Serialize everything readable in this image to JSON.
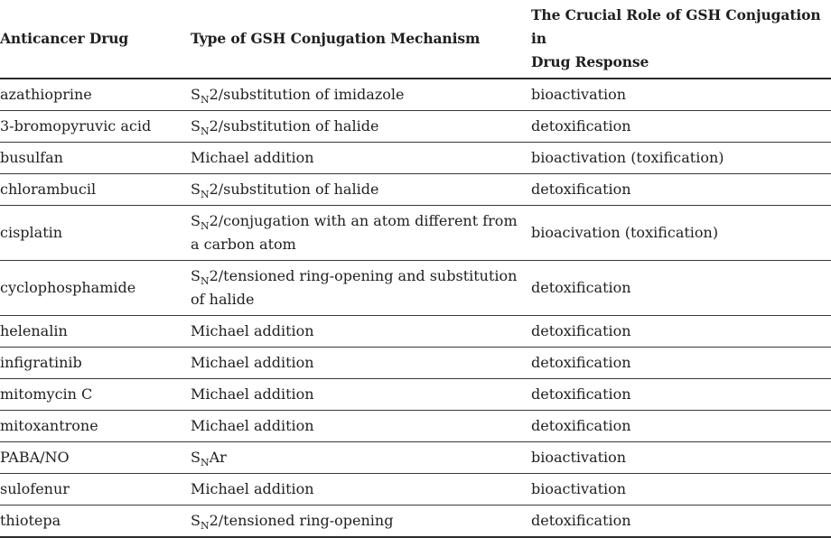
{
  "table": {
    "columns": [
      {
        "label": "Anticancer Drug"
      },
      {
        "label": "Type of GSH Conjugation Mechanism"
      },
      {
        "label": "The Crucial Role of GSH Conjugation in\nDrug Response"
      }
    ],
    "rows": [
      {
        "drug": "azathioprine",
        "mech_pre": "S",
        "mech_sub": "N",
        "mech_rest": "2/substitution of imidazole",
        "role": "bioactivation"
      },
      {
        "drug": "3-bromopyruvic acid",
        "mech_pre": "S",
        "mech_sub": "N",
        "mech_rest": "2/substitution of halide",
        "role": "detoxification"
      },
      {
        "drug": "busulfan",
        "mech_pre": "",
        "mech_sub": "",
        "mech_rest": "Michael addition",
        "role": "bioactivation (toxification)"
      },
      {
        "drug": "chlorambucil",
        "mech_pre": "S",
        "mech_sub": "N",
        "mech_rest": "2/substitution of halide",
        "role": "detoxification"
      },
      {
        "drug": "cisplatin",
        "mech_pre": "S",
        "mech_sub": "N",
        "mech_rest": "2/conjugation with an atom different from\na carbon atom",
        "role": "bioacivation (toxification)"
      },
      {
        "drug": "cyclophosphamide",
        "mech_pre": "S",
        "mech_sub": "N",
        "mech_rest": "2/tensioned ring-opening and substitution\nof halide",
        "role": "detoxification"
      },
      {
        "drug": "helenalin",
        "mech_pre": "",
        "mech_sub": "",
        "mech_rest": "Michael addition",
        "role": "detoxification"
      },
      {
        "drug": "infigratinib",
        "mech_pre": "",
        "mech_sub": "",
        "mech_rest": "Michael addition",
        "role": "detoxification"
      },
      {
        "drug": "mitomycin C",
        "mech_pre": "",
        "mech_sub": "",
        "mech_rest": "Michael addition",
        "role": "detoxification"
      },
      {
        "drug": "mitoxantrone",
        "mech_pre": "",
        "mech_sub": "",
        "mech_rest": "Michael addition",
        "role": "detoxification"
      },
      {
        "drug": "PABA/NO",
        "mech_pre": "S",
        "mech_sub": "N",
        "mech_rest": "Ar",
        "role": "bioactivation"
      },
      {
        "drug": "sulofenur",
        "mech_pre": "",
        "mech_sub": "",
        "mech_rest": "Michael addition",
        "role": "bioactivation"
      },
      {
        "drug": "thiotepa",
        "mech_pre": "S",
        "mech_sub": "N",
        "mech_rest": "2/tensioned ring-opening",
        "role": "detoxification"
      }
    ]
  },
  "colors": {
    "text": "#1f1f1f",
    "rule_heavy": "#2b2b2b",
    "rule_light": "#3a3a3a",
    "background": "#ffffff"
  }
}
